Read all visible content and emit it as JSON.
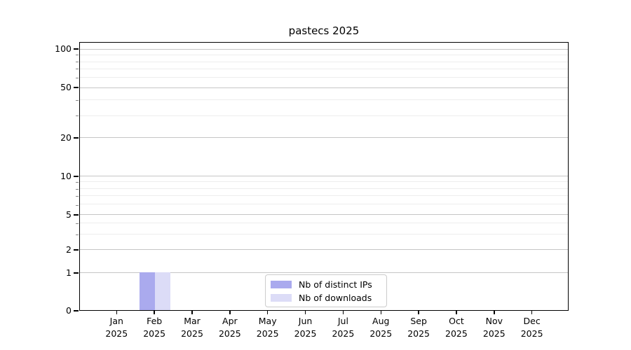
{
  "chart_data": {
    "type": "bar",
    "title": "pastecs 2025",
    "x_ticks": [
      [
        "Jan",
        "2025"
      ],
      [
        "Feb",
        "2025"
      ],
      [
        "Mar",
        "2025"
      ],
      [
        "Apr",
        "2025"
      ],
      [
        "May",
        "2025"
      ],
      [
        "Jun",
        "2025"
      ],
      [
        "Jul",
        "2025"
      ],
      [
        "Aug",
        "2025"
      ],
      [
        "Sep",
        "2025"
      ],
      [
        "Oct",
        "2025"
      ],
      [
        "Nov",
        "2025"
      ],
      [
        "Dec",
        "2025"
      ]
    ],
    "y_ticks": [
      0,
      1,
      2,
      5,
      10,
      20,
      50,
      100
    ],
    "y_minor_ticks": [
      3,
      4,
      6,
      7,
      8,
      9,
      30,
      40,
      60,
      70,
      80,
      90
    ],
    "y_scale": "symlog",
    "ylim": [
      0,
      115
    ],
    "grid": "on",
    "legend_position": "lower center",
    "series": [
      {
        "name": "Nb of distinct IPs",
        "color": "#aaaaee",
        "values": [
          0,
          1,
          0,
          0,
          0,
          0,
          0,
          0,
          0,
          0,
          0,
          0
        ]
      },
      {
        "name": "Nb of downloads",
        "color": "#dcdcf7",
        "values": [
          0,
          1,
          0,
          0,
          0,
          0,
          0,
          0,
          0,
          0,
          0,
          0
        ]
      }
    ]
  }
}
